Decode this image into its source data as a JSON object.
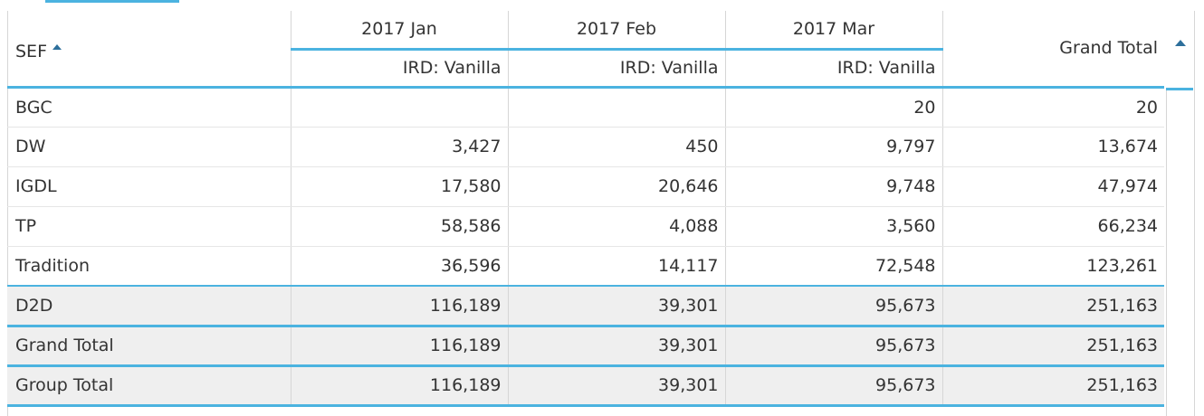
{
  "pivot": {
    "row_header": "SEF",
    "months": [
      "2017 Jan",
      "2017 Feb",
      "2017 Mar"
    ],
    "measure_label": "IRD: Vanilla",
    "grand_total_header": "Grand Total",
    "rows": [
      {
        "label": "BGC",
        "values": [
          "",
          "",
          "20",
          "20"
        ]
      },
      {
        "label": "DW",
        "values": [
          "3,427",
          "450",
          "9,797",
          "13,674"
        ]
      },
      {
        "label": "IGDL",
        "values": [
          "17,580",
          "20,646",
          "9,748",
          "47,974"
        ]
      },
      {
        "label": "TP",
        "values": [
          "58,586",
          "4,088",
          "3,560",
          "66,234"
        ]
      },
      {
        "label": "Tradition",
        "values": [
          "36,596",
          "14,117",
          "72,548",
          "123,261"
        ]
      }
    ],
    "totals": [
      {
        "label": "D2D",
        "values": [
          "116,189",
          "39,301",
          "95,673",
          "251,163"
        ]
      },
      {
        "label": "Grand Total",
        "values": [
          "116,189",
          "39,301",
          "95,673",
          "251,163"
        ]
      },
      {
        "label": "Group Total",
        "values": [
          "116,189",
          "39,301",
          "95,673",
          "251,163"
        ]
      }
    ]
  },
  "colors": {
    "accent": "#4bb3e0",
    "sort_arrow": "#2d6f9b",
    "total_bg": "#efefef",
    "grid": "#d6d6d6"
  },
  "icons": {
    "sort": "sort-ascending-icon",
    "scroll": "scroll-up-icon"
  }
}
